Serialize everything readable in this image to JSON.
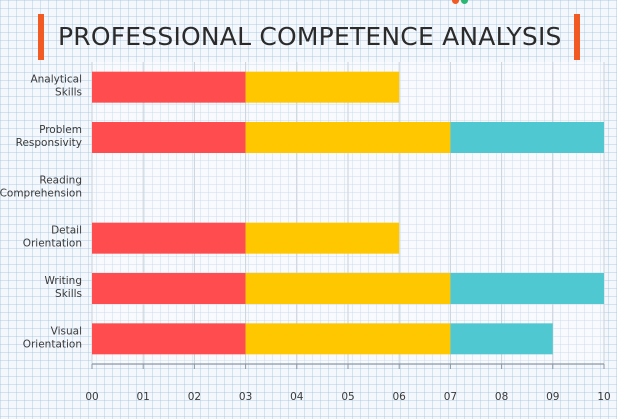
{
  "chart_data": {
    "type": "bar",
    "orientation": "horizontal",
    "stacked": true,
    "title": "PROFESSIONAL COMPETENCE ANALYSIS",
    "categories": [
      [
        "Analytical",
        "Skills"
      ],
      [
        "Problem",
        "Responsivity"
      ],
      [
        "Reading",
        "Comprehension"
      ],
      [
        "Detail",
        "Orientation"
      ],
      [
        "Writing",
        "Skills"
      ],
      [
        "Visual",
        "Orientation"
      ]
    ],
    "series": [
      {
        "color": "#ff4d4f",
        "values": [
          3,
          3,
          0,
          3,
          3,
          3
        ]
      },
      {
        "color": "#ffc700",
        "values": [
          3,
          4,
          0,
          3,
          4,
          4
        ]
      },
      {
        "color": "#4fc8d2",
        "values": [
          0,
          3,
          0,
          0,
          3,
          2
        ]
      }
    ],
    "xlim": [
      0,
      10
    ],
    "xticks": [
      "00",
      "01",
      "02",
      "03",
      "04",
      "05",
      "06",
      "07",
      "08",
      "09",
      "10"
    ],
    "grid": true,
    "legend": "none"
  }
}
